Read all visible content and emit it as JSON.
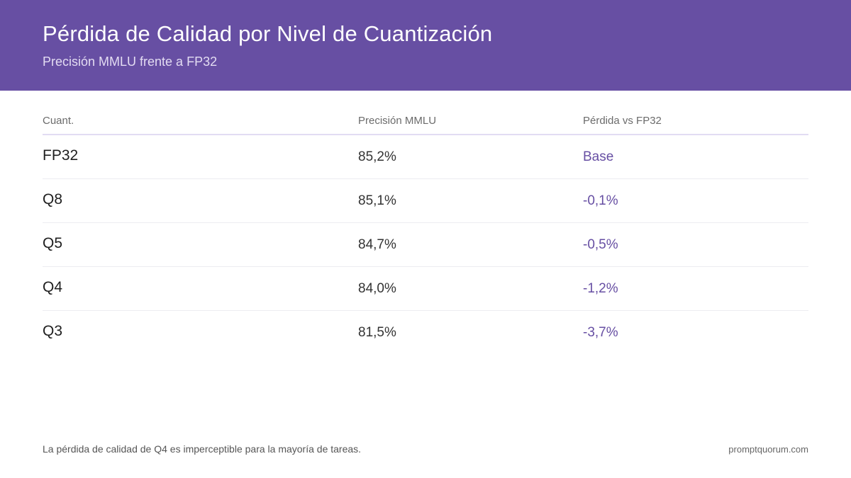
{
  "header": {
    "title": "Pérdida de Calidad por Nivel de Cuantización",
    "subtitle": "Precisión MMLU frente a FP32",
    "background_color": "#674fa3"
  },
  "table": {
    "columns": [
      "Cuant.",
      "Precisión MMLU",
      "Pérdida vs FP32"
    ],
    "rows": [
      {
        "quant": "FP32",
        "accuracy": "85,2%",
        "loss": "Base"
      },
      {
        "quant": "Q8",
        "accuracy": "85,1%",
        "loss": "-0,1%"
      },
      {
        "quant": "Q5",
        "accuracy": "84,7%",
        "loss": "-0,5%"
      },
      {
        "quant": "Q4",
        "accuracy": "84,0%",
        "loss": "-1,2%"
      },
      {
        "quant": "Q3",
        "accuracy": "81,5%",
        "loss": "-3,7%"
      }
    ],
    "accent_color": "#674fa3"
  },
  "footer": {
    "note": "La pérdida de calidad de Q4 es imperceptible para la mayoría de tareas.",
    "brand": "promptquorum.com"
  }
}
